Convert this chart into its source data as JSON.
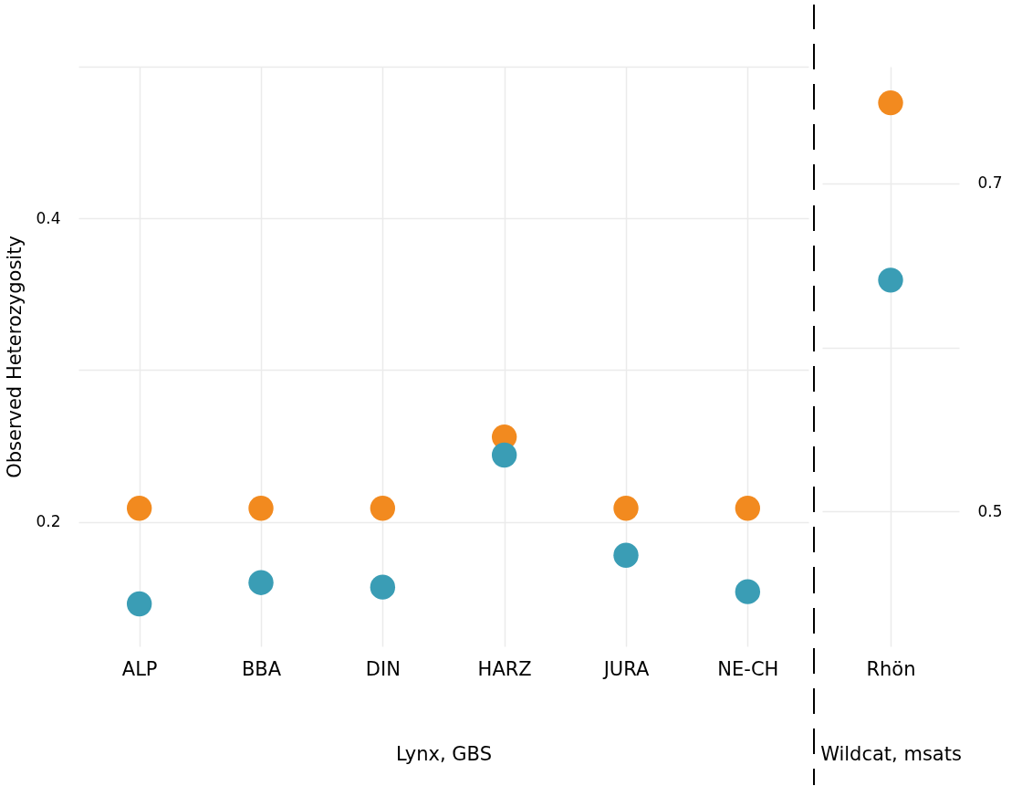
{
  "chart_data": [
    {
      "type": "scatter",
      "xlabel": "Lynx, GBS",
      "ylabel": "Observed Heterozygosity",
      "categories": [
        "ALP",
        "BBA",
        "DIN",
        "HARZ",
        "JURA",
        "NE-CH"
      ],
      "series": [
        {
          "color": "#f28a1f",
          "values": [
            0.209,
            0.209,
            0.209,
            0.256,
            0.209,
            0.209
          ]
        },
        {
          "color": "#3a9db5",
          "values": [
            0.146,
            0.16,
            0.157,
            0.244,
            0.178,
            0.154
          ]
        }
      ],
      "ylim": [
        0.118,
        0.5
      ],
      "yticks": [
        {
          "value": 0.2,
          "label": "0.2"
        },
        {
          "value": 0.3,
          "label": null
        },
        {
          "value": 0.4,
          "label": "0.4"
        },
        {
          "value": 0.5,
          "label": null
        }
      ],
      "grid": true,
      "marker": "circle"
    },
    {
      "type": "scatter",
      "xlabel": "Wildcat, msats",
      "categories": [
        "Rhön"
      ],
      "series": [
        {
          "color": "#f28a1f",
          "values": [
            0.749
          ]
        },
        {
          "color": "#3a9db5",
          "values": [
            0.641
          ]
        }
      ],
      "ylim": [
        0.418,
        0.771
      ],
      "yticks": [
        {
          "value": 0.5,
          "label": "0.5"
        },
        {
          "value": 0.6,
          "label": null
        },
        {
          "value": 0.7,
          "label": "0.7"
        }
      ],
      "grid": true,
      "marker": "circle"
    }
  ]
}
